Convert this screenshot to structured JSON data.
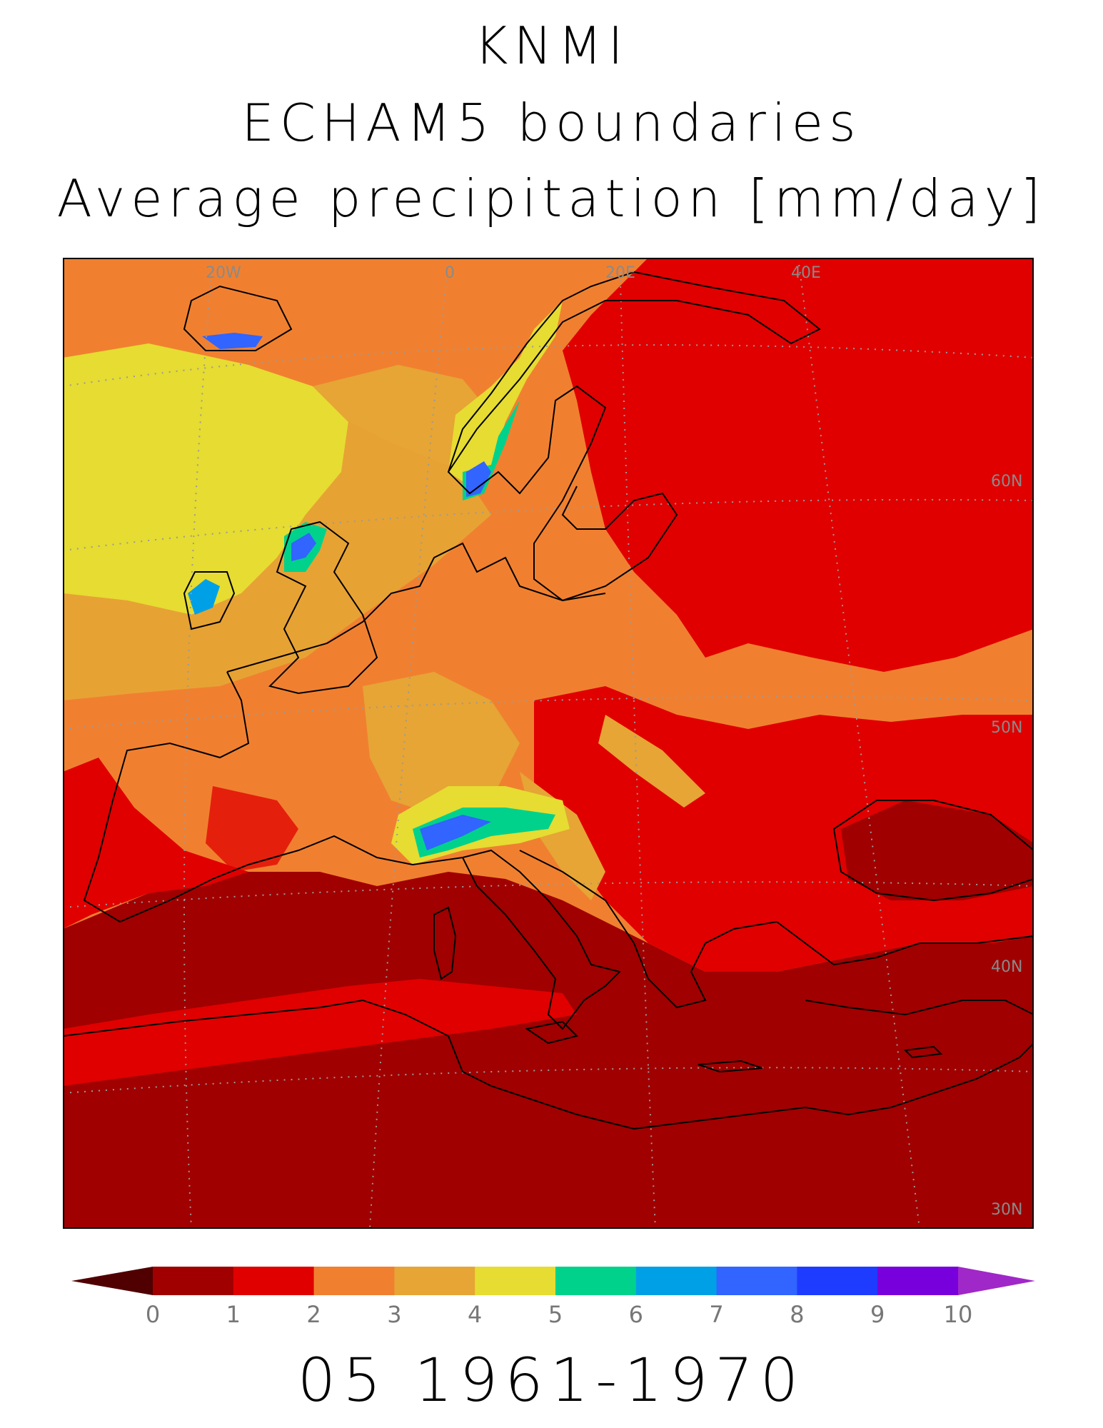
{
  "title": {
    "line1": "KNMI",
    "line2": "ECHAM5 boundaries",
    "line3": "Average precipitation [mm/day]"
  },
  "period_label": "05 1961-1970",
  "map": {
    "region": "Europe",
    "variable": "Average precipitation",
    "units": "mm/day",
    "graticule_labels": {
      "longitude": [
        "20W",
        "0",
        "20E",
        "40E"
      ],
      "latitude": [
        "60N",
        "50N",
        "40N",
        "30N"
      ]
    },
    "colors": {
      "ocean_dry": "#a00000",
      "land_dry": "#e00000",
      "medium": "#f08030",
      "moderate": "#e6a535",
      "wet": "#e6dc32",
      "very_wet_green": "#00d28c",
      "very_wet_cyan": "#00a0e6",
      "very_wet_blue": "#3264ff",
      "coastline": "#000000",
      "graticule": "#9a9a9a"
    }
  },
  "colorbar": {
    "ticks": [
      "0",
      "1",
      "2",
      "3",
      "4",
      "5",
      "6",
      "7",
      "8",
      "9",
      "10"
    ],
    "under_color": "#500000",
    "over_color": "#a028c8",
    "colors": [
      "#a00000",
      "#e00000",
      "#f08030",
      "#e6a535",
      "#e6dc32",
      "#00d28c",
      "#00a0e6",
      "#3264ff",
      "#1e3cff",
      "#7800dc"
    ]
  }
}
